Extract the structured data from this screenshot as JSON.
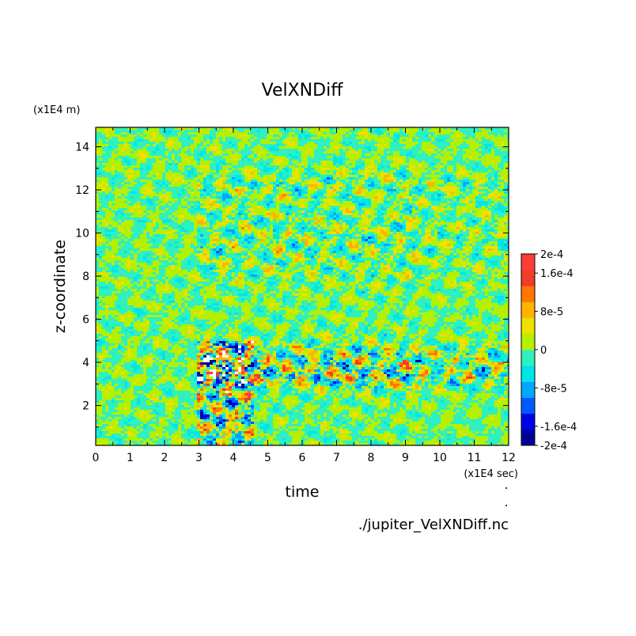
{
  "chart_data": {
    "type": "heatmap",
    "title": "VelXNDiff",
    "xlabel": "time",
    "ylabel": "z-coordinate",
    "x_unit": "(x1E4 sec)",
    "y_unit": "(x1E4 m)",
    "xlim": [
      0,
      12
    ],
    "ylim": [
      0.15,
      14.9
    ],
    "x_ticks": [
      "0",
      "1",
      "2",
      "3",
      "4",
      "5",
      "6",
      "7",
      "8",
      "9",
      "10",
      "11",
      "12"
    ],
    "y_ticks": [
      "2",
      "4",
      "6",
      "8",
      "10",
      "12",
      "14"
    ],
    "colorbar": {
      "range": [
        -0.0002,
        0.0002
      ],
      "tick_labels": [
        "2e-4",
        "1.6e-4",
        "8e-5",
        "0",
        "-8e-5",
        "-1.6e-4",
        "-2e-4"
      ],
      "tick_values": [
        0.0002,
        0.00016,
        8e-05,
        0,
        -8e-05,
        -0.00016,
        -0.0002
      ],
      "colors": [
        "#000096",
        "#0000e6",
        "#005aff",
        "#00a8ff",
        "#00e6e6",
        "#2ef0c0",
        "#b4f000",
        "#f0e100",
        "#ffb400",
        "#ff7800",
        "#f03c28",
        "#ff3c3c"
      ],
      "out_of_range_color": "#ffffff"
    },
    "features": [
      {
        "description": "strong mixed positive/negative band",
        "z": 3.4,
        "time_range": [
          3,
          12
        ]
      },
      {
        "description": "secondary disturbed band",
        "z": 4.3,
        "time_range": [
          3.5,
          9
        ]
      },
      {
        "description": "high-amplitude onset region",
        "z_range": [
          0.2,
          5
        ],
        "time_range": [
          2.9,
          4.5
        ]
      },
      {
        "description": "upper disturbed layer",
        "z_range": [
          9,
          12.6
        ],
        "time_range": [
          3.5,
          8
        ]
      }
    ],
    "source_file": "./jupiter_VelXNDiff.nc"
  }
}
